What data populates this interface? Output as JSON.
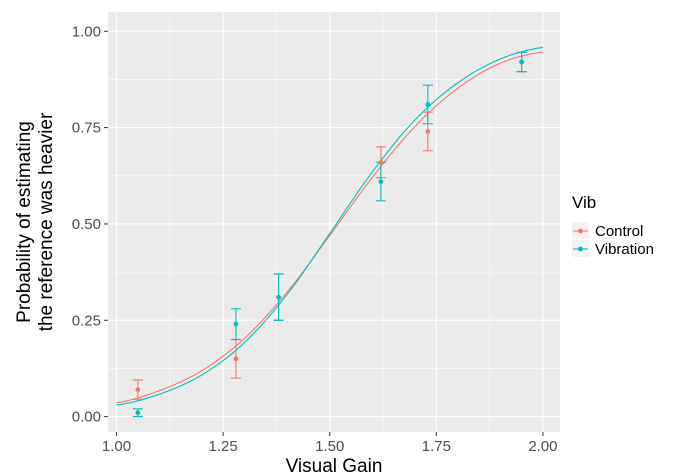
{
  "chart_data": {
    "type": "line",
    "xlabel": "Visual Gain",
    "ylabel_lines": [
      "Probability of estimating",
      "the reference was heavier"
    ],
    "xlim": [
      0.98,
      2.04
    ],
    "ylim": [
      -0.04,
      1.05
    ],
    "x_ticks": [
      1.0,
      1.25,
      1.5,
      1.75,
      2.0
    ],
    "x_tick_labels": [
      "1.00",
      "1.25",
      "1.50",
      "1.75",
      "2.00"
    ],
    "y_ticks": [
      0.0,
      0.25,
      0.5,
      0.75,
      1.0
    ],
    "y_tick_labels": [
      "0.00",
      "0.25",
      "0.50",
      "0.75",
      "1.00"
    ],
    "grid": true,
    "legend_title": "Vib",
    "legend_position": "right",
    "series": [
      {
        "name": "Control",
        "color": "#F8766D",
        "points": [
          {
            "x": 1.05,
            "y": 0.07,
            "lo": 0.045,
            "hi": 0.095
          },
          {
            "x": 1.28,
            "y": 0.15,
            "lo": 0.1,
            "hi": 0.2
          },
          {
            "x": 1.38,
            "y": 0.31,
            "lo": 0.25,
            "hi": 0.37
          },
          {
            "x": 1.62,
            "y": 0.66,
            "lo": 0.62,
            "hi": 0.7
          },
          {
            "x": 1.73,
            "y": 0.74,
            "lo": 0.69,
            "hi": 0.79
          },
          {
            "x": 1.95,
            "y": 0.92,
            "lo": 0.895,
            "hi": 0.945
          }
        ],
        "fit": {
          "x": [
            1.0,
            1.1,
            1.2,
            1.3,
            1.4,
            1.5,
            1.6,
            1.7,
            1.8,
            1.9,
            2.0
          ],
          "y": [
            0.036,
            0.067,
            0.119,
            0.203,
            0.323,
            0.47,
            0.621,
            0.753,
            0.852,
            0.917,
            0.946
          ]
        }
      },
      {
        "name": "Vibration",
        "color": "#00BFC4",
        "points": [
          {
            "x": 1.05,
            "y": 0.01,
            "lo": 0.0,
            "hi": 0.02
          },
          {
            "x": 1.28,
            "y": 0.24,
            "lo": 0.2,
            "hi": 0.28
          },
          {
            "x": 1.38,
            "y": 0.31,
            "lo": 0.25,
            "hi": 0.37
          },
          {
            "x": 1.62,
            "y": 0.61,
            "lo": 0.56,
            "hi": 0.66
          },
          {
            "x": 1.73,
            "y": 0.81,
            "lo": 0.76,
            "hi": 0.86
          },
          {
            "x": 1.95,
            "y": 0.92,
            "lo": 0.895,
            "hi": 0.945
          }
        ],
        "fit": {
          "x": [
            1.0,
            1.1,
            1.2,
            1.3,
            1.4,
            1.5,
            1.6,
            1.7,
            1.8,
            1.9,
            2.0
          ],
          "y": [
            0.03,
            0.058,
            0.108,
            0.192,
            0.317,
            0.475,
            0.635,
            0.77,
            0.866,
            0.928,
            0.958
          ]
        }
      }
    ]
  }
}
